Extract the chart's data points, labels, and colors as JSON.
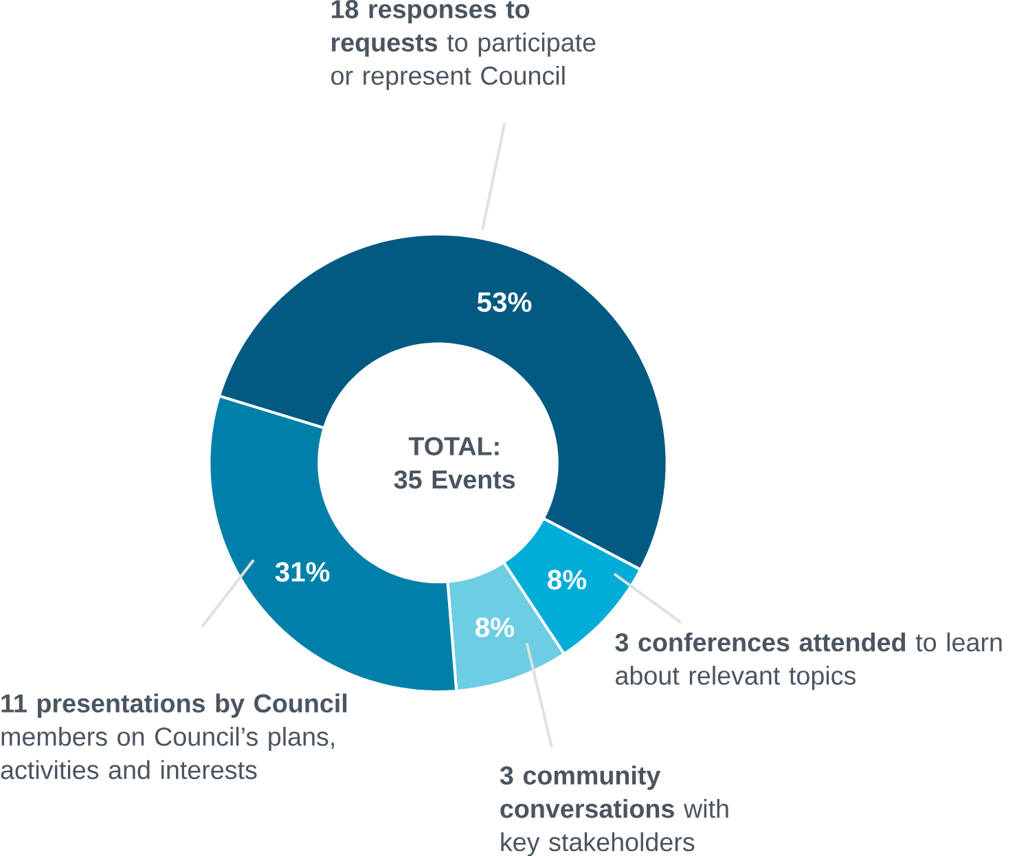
{
  "chart_data": {
    "type": "donut",
    "categories": [
      "**18 responses to requests** to participate or represent Council",
      "**3 conferences attended** to learn about relevant topics",
      "**3 community conversations** with key stakeholders",
      "**11 presentations by Council** members on Council’s plans, activities and interests"
    ],
    "values": [
      53,
      8,
      8,
      31
    ],
    "value_labels": [
      "53%",
      "8%",
      "8%",
      "31%"
    ],
    "colors": [
      "#005a82",
      "#00acd8",
      "#6ccde3",
      "#0080a8"
    ],
    "annotations": [
      "TOTAL: 35 Events"
    ]
  }
}
